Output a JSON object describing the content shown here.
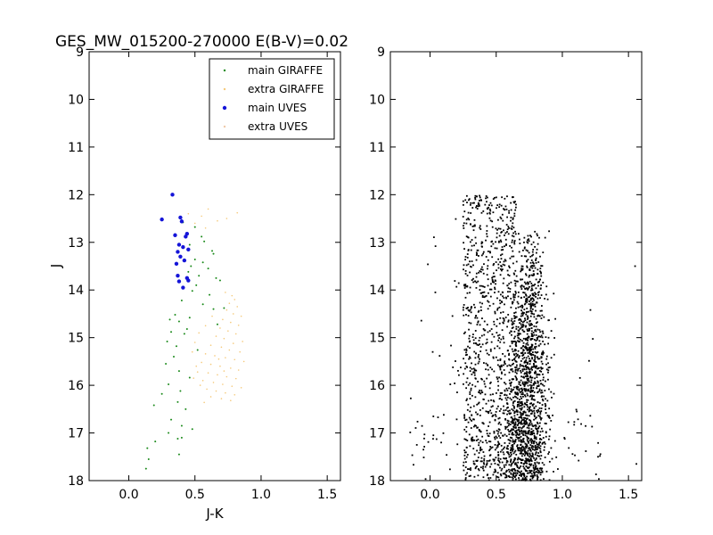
{
  "title": "GES_MW_015200-270000 E(B-V)=0.02",
  "colors": {
    "main_giraffe": "#1a8a1a",
    "extra_giraffe": "#f5c97a",
    "main_uves": "#1515d8",
    "extra_uves": "#efc9a8",
    "field": "#000000"
  },
  "chart_data": [
    {
      "type": "scatter",
      "panel": "left",
      "title": "GES_MW_015200-270000 E(B-V)=0.02",
      "xlabel": "J-K",
      "ylabel": "J",
      "xlim": [
        -0.3,
        1.6
      ],
      "ylim": [
        18,
        9
      ],
      "y_inverted": true,
      "xticks": [
        "0.0",
        "0.5",
        "1.0",
        "1.5"
      ],
      "yticks": [
        "9",
        "10",
        "11",
        "12",
        "13",
        "14",
        "15",
        "16",
        "17",
        "18"
      ],
      "legend_position": "top-right",
      "series": [
        {
          "name": "main GIRAFFE",
          "color": "#1a8a1a",
          "points": [
            [
              0.41,
              12.58
            ],
            [
              0.5,
              12.68
            ],
            [
              0.55,
              12.88
            ],
            [
              0.57,
              12.98
            ],
            [
              0.46,
              13.05
            ],
            [
              0.63,
              13.18
            ],
            [
              0.64,
              13.24
            ],
            [
              0.5,
              13.36
            ],
            [
              0.56,
              13.42
            ],
            [
              0.47,
              13.5
            ],
            [
              0.6,
              13.55
            ],
            [
              0.45,
              13.62
            ],
            [
              0.53,
              13.7
            ],
            [
              0.66,
              13.75
            ],
            [
              0.69,
              13.8
            ],
            [
              0.51,
              13.9
            ],
            [
              0.48,
              14.02
            ],
            [
              0.61,
              14.1
            ],
            [
              0.4,
              14.22
            ],
            [
              0.56,
              14.3
            ],
            [
              0.72,
              14.38
            ],
            [
              0.64,
              14.4
            ],
            [
              0.35,
              14.52
            ],
            [
              0.46,
              14.58
            ],
            [
              0.31,
              14.62
            ],
            [
              0.38,
              14.66
            ],
            [
              0.67,
              14.72
            ],
            [
              0.44,
              14.82
            ],
            [
              0.32,
              14.88
            ],
            [
              0.42,
              14.92
            ],
            [
              0.29,
              15.08
            ],
            [
              0.36,
              15.18
            ],
            [
              0.52,
              15.26
            ],
            [
              0.34,
              15.4
            ],
            [
              0.28,
              15.55
            ],
            [
              0.38,
              15.7
            ],
            [
              0.46,
              15.84
            ],
            [
              0.3,
              15.98
            ],
            [
              0.39,
              16.12
            ],
            [
              0.25,
              16.18
            ],
            [
              0.37,
              16.35
            ],
            [
              0.19,
              16.42
            ],
            [
              0.43,
              16.5
            ],
            [
              0.32,
              16.72
            ],
            [
              0.4,
              16.85
            ],
            [
              0.48,
              16.92
            ],
            [
              0.3,
              17.0
            ],
            [
              0.4,
              17.1
            ],
            [
              0.37,
              17.12
            ],
            [
              0.2,
              17.18
            ],
            [
              0.14,
              17.32
            ],
            [
              0.38,
              17.45
            ],
            [
              0.15,
              17.55
            ],
            [
              0.13,
              17.75
            ]
          ]
        },
        {
          "name": "extra GIRAFFE",
          "color": "#f5c97a",
          "points": [
            [
              0.73,
              14.05
            ],
            [
              0.78,
              14.12
            ],
            [
              0.8,
              14.2
            ],
            [
              0.76,
              14.28
            ],
            [
              0.82,
              14.35
            ],
            [
              0.74,
              14.42
            ],
            [
              0.79,
              14.5
            ],
            [
              0.85,
              14.55
            ],
            [
              0.71,
              14.62
            ],
            [
              0.77,
              14.68
            ],
            [
              0.83,
              14.74
            ],
            [
              0.69,
              14.8
            ],
            [
              0.75,
              14.86
            ],
            [
              0.81,
              14.92
            ],
            [
              0.66,
              14.97
            ],
            [
              0.72,
              15.02
            ],
            [
              0.86,
              15.08
            ],
            [
              0.79,
              15.12
            ],
            [
              0.62,
              15.16
            ],
            [
              0.7,
              15.2
            ],
            [
              0.76,
              15.26
            ],
            [
              0.84,
              15.3
            ],
            [
              0.58,
              15.34
            ],
            [
              0.65,
              15.38
            ],
            [
              0.73,
              15.42
            ],
            [
              0.8,
              15.46
            ],
            [
              0.87,
              15.5
            ],
            [
              0.55,
              15.52
            ],
            [
              0.62,
              15.56
            ],
            [
              0.69,
              15.6
            ],
            [
              0.77,
              15.64
            ],
            [
              0.83,
              15.68
            ],
            [
              0.52,
              15.72
            ],
            [
              0.6,
              15.74
            ],
            [
              0.67,
              15.78
            ],
            [
              0.74,
              15.82
            ],
            [
              0.81,
              15.86
            ],
            [
              0.56,
              15.9
            ],
            [
              0.64,
              15.94
            ],
            [
              0.71,
              15.98
            ],
            [
              0.78,
              16.02
            ],
            [
              0.85,
              16.05
            ],
            [
              0.59,
              16.08
            ],
            [
              0.66,
              16.12
            ],
            [
              0.73,
              16.16
            ],
            [
              0.8,
              16.2
            ],
            [
              0.62,
              16.24
            ],
            [
              0.7,
              16.28
            ],
            [
              0.77,
              16.32
            ],
            [
              0.57,
              16.36
            ],
            [
              0.5,
              15.1
            ],
            [
              0.53,
              14.9
            ],
            [
              0.48,
              15.3
            ],
            [
              0.51,
              15.6
            ],
            [
              0.49,
              15.85
            ],
            [
              0.54,
              16.0
            ],
            [
              0.58,
              14.75
            ],
            [
              0.63,
              14.55
            ],
            [
              0.68,
              15.45
            ],
            [
              0.72,
              15.7
            ],
            [
              0.6,
              12.3
            ],
            [
              0.55,
              12.45
            ],
            [
              0.67,
              12.55
            ],
            [
              0.82,
              12.38
            ],
            [
              0.5,
              12.6
            ],
            [
              0.58,
              12.7
            ],
            [
              0.74,
              12.5
            ],
            [
              0.45,
              12.4
            ]
          ]
        },
        {
          "name": "main UVES",
          "color": "#1515d8",
          "points": [
            [
              0.33,
              12.0
            ],
            [
              0.25,
              12.52
            ],
            [
              0.39,
              12.48
            ],
            [
              0.4,
              12.56
            ],
            [
              0.35,
              12.85
            ],
            [
              0.44,
              12.82
            ],
            [
              0.43,
              12.88
            ],
            [
              0.38,
              13.05
            ],
            [
              0.41,
              13.1
            ],
            [
              0.37,
              13.2
            ],
            [
              0.45,
              13.15
            ],
            [
              0.39,
              13.3
            ],
            [
              0.42,
              13.38
            ],
            [
              0.36,
              13.45
            ],
            [
              0.37,
              13.7
            ],
            [
              0.38,
              13.82
            ],
            [
              0.44,
              13.75
            ],
            [
              0.45,
              13.8
            ],
            [
              0.41,
              13.95
            ]
          ]
        },
        {
          "name": "extra UVES",
          "color": "#efc9a8",
          "points": []
        }
      ]
    },
    {
      "type": "scatter",
      "panel": "right",
      "xlim": [
        -0.3,
        1.6
      ],
      "ylim": [
        18,
        9
      ],
      "y_inverted": true,
      "xticks": [
        "0.0",
        "0.5",
        "1.0",
        "1.5"
      ],
      "yticks": [
        "9",
        "10",
        "11",
        "12",
        "13",
        "14",
        "15",
        "16",
        "17",
        "18"
      ],
      "series": [
        {
          "name": "",
          "color": "#000000",
          "distribution": {
            "total_points": 2600,
            "red_sequence": {
              "count": 1500,
              "j_range": [
                12.7,
                18.0
              ],
              "color_center": 0.74,
              "color_spread": 0.05,
              "faint_broadening": 0.04
            },
            "blue_band": {
              "count": 900,
              "j_range": [
                12.0,
                18.0
              ],
              "color_range": [
                0.25,
                0.65
              ]
            },
            "scatter": {
              "count": 200,
              "j_range": [
                12.0,
                18.0
              ],
              "color_range": [
                -0.15,
                1.3
              ]
            },
            "outliers": [
              [
                1.55,
                13.5
              ],
              [
                1.56,
                17.65
              ],
              [
                1.27,
                17.5
              ],
              [
                -0.1,
                17.25
              ],
              [
                -0.05,
                17.35
              ],
              [
                0.04,
                14.05
              ],
              [
                0.02,
                15.3
              ]
            ]
          }
        }
      ]
    }
  ]
}
